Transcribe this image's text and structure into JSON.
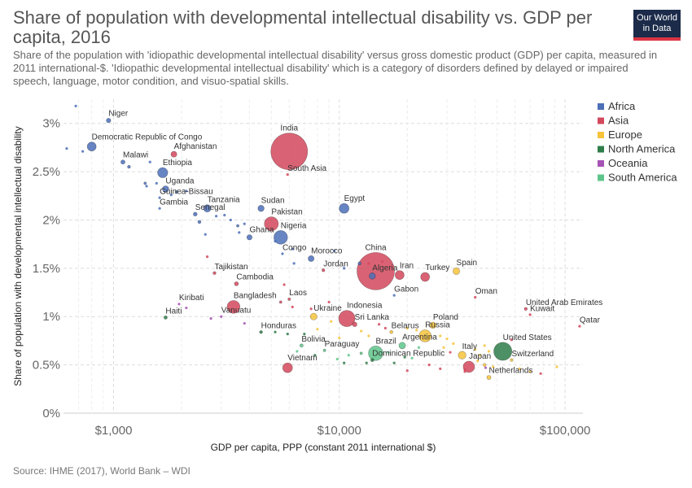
{
  "header": {
    "title": "Share of population with developmental intellectual disability vs. GDP per capita, 2016",
    "subtitle": "Share of the population with 'idiopathic developmental intellectual disability' versus gross domestic product (GDP) per capita, measured in 2011 international-$. 'Idiopathic developmental intellectual disability' which is a category of disorders defined by delayed or impaired speech, language, motor condition, and visuo-spatial skills.",
    "logo_line1": "Our World",
    "logo_line2": "in Data"
  },
  "footer": {
    "source": "Source: IHME (2017), World Bank – WDI"
  },
  "colors": {
    "Africa": "#4c6fb8",
    "Asia": "#d2485c",
    "Europe": "#f6c33b",
    "North America": "#2f7d4a",
    "Oceania": "#a553b4",
    "South America": "#5ec58a"
  },
  "chart_data": {
    "type": "scatter",
    "title": "Share of population with developmental intellectual disability vs. GDP per capita, 2016",
    "xlabel": "GDP per capita, PPP (constant 2011 international $)",
    "ylabel": "Share of population with developmental intellectual disability",
    "x_scale": "log",
    "xlim": [
      600,
      120000
    ],
    "ylim": [
      0,
      3.25
    ],
    "x_ticks": [
      1000,
      10000,
      100000
    ],
    "x_tick_labels": [
      "$1,000",
      "$10,000",
      "$100,000"
    ],
    "y_ticks": [
      0,
      0.5,
      1,
      1.5,
      2,
      2.5,
      3
    ],
    "y_tick_labels": [
      "0%",
      "0.5%",
      "1%",
      "1.5%",
      "2%",
      "2.5%",
      "3%"
    ],
    "grid": true,
    "legend_position": "right",
    "legend": [
      "Africa",
      "Asia",
      "Europe",
      "North America",
      "Oceania",
      "South America"
    ],
    "points": [
      {
        "label": "Niger",
        "x": 950,
        "y": 3.03,
        "pop": 20,
        "region": "Africa"
      },
      {
        "label": "Democratic Republic of Congo",
        "x": 800,
        "y": 2.76,
        "pop": 79,
        "region": "Africa"
      },
      {
        "label": "Malawi",
        "x": 1100,
        "y": 2.6,
        "pop": 18,
        "region": "Africa"
      },
      {
        "label": "Afghanistan",
        "x": 1850,
        "y": 2.68,
        "pop": 35,
        "region": "Asia"
      },
      {
        "label": "India",
        "x": 6000,
        "y": 2.71,
        "pop": 1324,
        "region": "Asia"
      },
      {
        "label": "South Asia",
        "x": 5900,
        "y": 2.47,
        "pop": 1,
        "region": "Asia"
      },
      {
        "label": "Ethiopia",
        "x": 1650,
        "y": 2.49,
        "pop": 102,
        "region": "Africa"
      },
      {
        "label": "Uganda",
        "x": 1700,
        "y": 2.32,
        "pop": 41,
        "region": "Africa"
      },
      {
        "label": "Guinea-Bissau",
        "x": 1600,
        "y": 2.23,
        "pop": 2,
        "region": "Africa"
      },
      {
        "label": "Gambia",
        "x": 1600,
        "y": 2.12,
        "pop": 2,
        "region": "Africa"
      },
      {
        "label": "Tanzania",
        "x": 2600,
        "y": 2.12,
        "pop": 55,
        "region": "Africa"
      },
      {
        "label": "Senegal",
        "x": 2300,
        "y": 2.06,
        "pop": 15,
        "region": "Africa"
      },
      {
        "label": "Sudan",
        "x": 4500,
        "y": 2.12,
        "pop": 39,
        "region": "Africa"
      },
      {
        "label": "Egypt",
        "x": 10500,
        "y": 2.12,
        "pop": 95,
        "region": "Africa"
      },
      {
        "label": "Pakistan",
        "x": 5000,
        "y": 1.96,
        "pop": 193,
        "region": "Asia"
      },
      {
        "label": "Nigeria",
        "x": 5500,
        "y": 1.82,
        "pop": 185,
        "region": "Africa"
      },
      {
        "label": "Ghana",
        "x": 4000,
        "y": 1.82,
        "pop": 28,
        "region": "Africa"
      },
      {
        "label": "Congo",
        "x": 5600,
        "y": 1.65,
        "pop": 5,
        "region": "Africa"
      },
      {
        "label": "Morocco",
        "x": 7500,
        "y": 1.6,
        "pop": 35,
        "region": "Africa"
      },
      {
        "label": "Jordan",
        "x": 8500,
        "y": 1.48,
        "pop": 9,
        "region": "Asia"
      },
      {
        "label": "China",
        "x": 14500,
        "y": 1.47,
        "pop": 1379,
        "region": "Asia"
      },
      {
        "label": "Algeria",
        "x": 14000,
        "y": 1.42,
        "pop": 40,
        "region": "Africa"
      },
      {
        "label": "Iran",
        "x": 18500,
        "y": 1.43,
        "pop": 80,
        "region": "Asia"
      },
      {
        "label": "Turkey",
        "x": 24000,
        "y": 1.41,
        "pop": 79,
        "region": "Asia"
      },
      {
        "label": "Spain",
        "x": 33000,
        "y": 1.47,
        "pop": 46,
        "region": "Europe"
      },
      {
        "label": "Tajikistan",
        "x": 2800,
        "y": 1.45,
        "pop": 9,
        "region": "Asia"
      },
      {
        "label": "Cambodia",
        "x": 3500,
        "y": 1.34,
        "pop": 16,
        "region": "Asia"
      },
      {
        "label": "Gabon",
        "x": 17500,
        "y": 1.22,
        "pop": 2,
        "region": "Africa"
      },
      {
        "label": "Oman",
        "x": 40000,
        "y": 1.2,
        "pop": 4,
        "region": "Asia"
      },
      {
        "label": "United Arab Emirates",
        "x": 67000,
        "y": 1.08,
        "pop": 9,
        "region": "Asia"
      },
      {
        "label": "Kuwait",
        "x": 70000,
        "y": 1.02,
        "pop": 4,
        "region": "Asia"
      },
      {
        "label": "Qatar",
        "x": 116000,
        "y": 0.9,
        "pop": 3,
        "region": "Asia"
      },
      {
        "label": "Kiribati",
        "x": 1950,
        "y": 1.13,
        "pop": 1,
        "region": "Oceania"
      },
      {
        "label": "Laos",
        "x": 6000,
        "y": 1.18,
        "pop": 7,
        "region": "Asia"
      },
      {
        "label": "Bangladesh",
        "x": 3400,
        "y": 1.1,
        "pop": 163,
        "region": "Asia"
      },
      {
        "label": "Vanuatu",
        "x": 3000,
        "y": 1.0,
        "pop": 1,
        "region": "Oceania"
      },
      {
        "label": "Haiti",
        "x": 1700,
        "y": 0.99,
        "pop": 11,
        "region": "North America"
      },
      {
        "label": "Indonesia",
        "x": 10800,
        "y": 0.98,
        "pop": 261,
        "region": "Asia"
      },
      {
        "label": "Ukraine",
        "x": 7700,
        "y": 1.0,
        "pop": 45,
        "region": "Europe"
      },
      {
        "label": "Sri Lanka",
        "x": 11700,
        "y": 0.92,
        "pop": 21,
        "region": "Asia"
      },
      {
        "label": "Belarus",
        "x": 17000,
        "y": 0.84,
        "pop": 10,
        "region": "Europe"
      },
      {
        "label": "Poland",
        "x": 26000,
        "y": 0.91,
        "pop": 38,
        "region": "Europe"
      },
      {
        "label": "Russia",
        "x": 24000,
        "y": 0.8,
        "pop": 144,
        "region": "Europe"
      },
      {
        "label": "Honduras",
        "x": 4500,
        "y": 0.84,
        "pop": 9,
        "region": "North America"
      },
      {
        "label": "Bolivia",
        "x": 6800,
        "y": 0.7,
        "pop": 11,
        "region": "South America"
      },
      {
        "label": "Paraguay",
        "x": 8600,
        "y": 0.65,
        "pop": 7,
        "region": "South America"
      },
      {
        "label": "Brazil",
        "x": 14500,
        "y": 0.62,
        "pop": 208,
        "region": "South America"
      },
      {
        "label": "Argentina",
        "x": 19000,
        "y": 0.7,
        "pop": 44,
        "region": "South America"
      },
      {
        "label": "Dominican Republic",
        "x": 14000,
        "y": 0.55,
        "pop": 11,
        "region": "North America"
      },
      {
        "label": "Italy",
        "x": 35000,
        "y": 0.6,
        "pop": 61,
        "region": "Europe"
      },
      {
        "label": "Japan",
        "x": 37500,
        "y": 0.48,
        "pop": 127,
        "region": "Asia"
      },
      {
        "label": "United States",
        "x": 53000,
        "y": 0.64,
        "pop": 323,
        "region": "North America"
      },
      {
        "label": "Switzerland",
        "x": 58000,
        "y": 0.55,
        "pop": 8,
        "region": "Europe"
      },
      {
        "label": "Netherlands",
        "x": 46000,
        "y": 0.37,
        "pop": 17,
        "region": "Europe"
      },
      {
        "label": "Vietnam",
        "x": 5900,
        "y": 0.47,
        "pop": 95,
        "region": "Asia"
      },
      {
        "label": "",
        "x": 680,
        "y": 3.18,
        "pop": 3,
        "region": "Africa"
      },
      {
        "label": "",
        "x": 620,
        "y": 2.74,
        "pop": 2,
        "region": "Africa"
      },
      {
        "label": "",
        "x": 730,
        "y": 2.71,
        "pop": 4,
        "region": "Africa"
      },
      {
        "label": "",
        "x": 1170,
        "y": 2.55,
        "pop": 9,
        "region": "Africa"
      },
      {
        "label": "",
        "x": 1450,
        "y": 2.6,
        "pop": 5,
        "region": "Africa"
      },
      {
        "label": "",
        "x": 1380,
        "y": 2.38,
        "pop": 6,
        "region": "Africa"
      },
      {
        "label": "",
        "x": 1400,
        "y": 2.35,
        "pop": 4,
        "region": "Africa"
      },
      {
        "label": "",
        "x": 1550,
        "y": 2.38,
        "pop": 4,
        "region": "Africa"
      },
      {
        "label": "",
        "x": 1900,
        "y": 2.29,
        "pop": 8,
        "region": "Africa"
      },
      {
        "label": "",
        "x": 2100,
        "y": 2.3,
        "pop": 3,
        "region": "Africa"
      },
      {
        "label": "",
        "x": 1800,
        "y": 2.26,
        "pop": 5,
        "region": "Africa"
      },
      {
        "label": "",
        "x": 2400,
        "y": 1.98,
        "pop": 10,
        "region": "Africa"
      },
      {
        "label": "",
        "x": 2850,
        "y": 2.04,
        "pop": 5,
        "region": "Africa"
      },
      {
        "label": "",
        "x": 3100,
        "y": 2.05,
        "pop": 3,
        "region": "Africa"
      },
      {
        "label": "",
        "x": 3300,
        "y": 2.0,
        "pop": 4,
        "region": "Africa"
      },
      {
        "label": "",
        "x": 3550,
        "y": 1.94,
        "pop": 6,
        "region": "Africa"
      },
      {
        "label": "",
        "x": 3800,
        "y": 1.96,
        "pop": 5,
        "region": "Africa"
      },
      {
        "label": "",
        "x": 2550,
        "y": 1.85,
        "pop": 1,
        "region": "Africa"
      },
      {
        "label": "",
        "x": 3600,
        "y": 1.87,
        "pop": 2,
        "region": "Africa"
      },
      {
        "label": "",
        "x": 5200,
        "y": 1.78,
        "pop": 2,
        "region": "Africa"
      },
      {
        "label": "",
        "x": 6200,
        "y": 1.7,
        "pop": 2,
        "region": "Africa"
      },
      {
        "label": "",
        "x": 6300,
        "y": 1.55,
        "pop": 2,
        "region": "Africa"
      },
      {
        "label": "",
        "x": 9500,
        "y": 1.68,
        "pop": 1,
        "region": "Africa"
      },
      {
        "label": "",
        "x": 12300,
        "y": 1.55,
        "pop": 10,
        "region": "Africa"
      },
      {
        "label": "",
        "x": 10500,
        "y": 1.5,
        "pop": 2,
        "region": "Africa"
      },
      {
        "label": "",
        "x": 13500,
        "y": 1.55,
        "pop": 3,
        "region": "Asia"
      },
      {
        "label": "",
        "x": 15500,
        "y": 1.57,
        "pop": 3,
        "region": "Asia"
      },
      {
        "label": "",
        "x": 2600,
        "y": 1.62,
        "pop": 3,
        "region": "Asia"
      },
      {
        "label": "",
        "x": 5700,
        "y": 1.33,
        "pop": 4,
        "region": "Asia"
      },
      {
        "label": "",
        "x": 5500,
        "y": 1.15,
        "pop": 6,
        "region": "Asia"
      },
      {
        "label": "",
        "x": 6200,
        "y": 1.1,
        "pop": 4,
        "region": "Asia"
      },
      {
        "label": "",
        "x": 7500,
        "y": 1.08,
        "pop": 4,
        "region": "Asia"
      },
      {
        "label": "",
        "x": 9000,
        "y": 1.15,
        "pop": 3,
        "region": "Asia"
      },
      {
        "label": "",
        "x": 2100,
        "y": 1.09,
        "pop": 1,
        "region": "Oceania"
      },
      {
        "label": "",
        "x": 2700,
        "y": 0.98,
        "pop": 2,
        "region": "Oceania"
      },
      {
        "label": "",
        "x": 3800,
        "y": 0.93,
        "pop": 1,
        "region": "Oceania"
      },
      {
        "label": "",
        "x": 5200,
        "y": 0.84,
        "pop": 2,
        "region": "North America"
      },
      {
        "label": "",
        "x": 5900,
        "y": 0.82,
        "pop": 4,
        "region": "North America"
      },
      {
        "label": "",
        "x": 7000,
        "y": 0.82,
        "pop": 3,
        "region": "North America"
      },
      {
        "label": "",
        "x": 8000,
        "y": 0.87,
        "pop": 3,
        "region": "Europe"
      },
      {
        "label": "",
        "x": 9200,
        "y": 0.95,
        "pop": 4,
        "region": "Europe"
      },
      {
        "label": "",
        "x": 10000,
        "y": 0.78,
        "pop": 3,
        "region": "Europe"
      },
      {
        "label": "",
        "x": 12500,
        "y": 0.85,
        "pop": 3,
        "region": "Europe"
      },
      {
        "label": "",
        "x": 13500,
        "y": 0.8,
        "pop": 4,
        "region": "Europe"
      },
      {
        "label": "",
        "x": 15000,
        "y": 0.92,
        "pop": 3,
        "region": "Asia"
      },
      {
        "label": "",
        "x": 16000,
        "y": 0.88,
        "pop": 4,
        "region": "Asia"
      },
      {
        "label": "",
        "x": 20000,
        "y": 0.88,
        "pop": 3,
        "region": "Europe"
      },
      {
        "label": "",
        "x": 22000,
        "y": 0.86,
        "pop": 4,
        "region": "Europe"
      },
      {
        "label": "",
        "x": 25000,
        "y": 0.77,
        "pop": 4,
        "region": "Europe"
      },
      {
        "label": "",
        "x": 28000,
        "y": 0.8,
        "pop": 4,
        "region": "Europe"
      },
      {
        "label": "",
        "x": 30000,
        "y": 0.77,
        "pop": 3,
        "region": "Europe"
      },
      {
        "label": "",
        "x": 32000,
        "y": 0.72,
        "pop": 3,
        "region": "Europe"
      },
      {
        "label": "",
        "x": 29000,
        "y": 0.68,
        "pop": 5,
        "region": "Europe"
      },
      {
        "label": "",
        "x": 31000,
        "y": 0.63,
        "pop": 3,
        "region": "Asia"
      },
      {
        "label": "",
        "x": 40000,
        "y": 0.66,
        "pop": 4,
        "region": "Europe"
      },
      {
        "label": "",
        "x": 42000,
        "y": 0.6,
        "pop": 5,
        "region": "Europe"
      },
      {
        "label": "",
        "x": 44000,
        "y": 0.7,
        "pop": 3,
        "region": "Europe"
      },
      {
        "label": "",
        "x": 46000,
        "y": 0.64,
        "pop": 3,
        "region": "Europe"
      },
      {
        "label": "",
        "x": 44000,
        "y": 0.5,
        "pop": 9,
        "region": "Europe"
      },
      {
        "label": "",
        "x": 48000,
        "y": 0.48,
        "pop": 4,
        "region": "Europe"
      },
      {
        "label": "",
        "x": 41000,
        "y": 0.54,
        "pop": 4,
        "region": "Europe"
      },
      {
        "label": "",
        "x": 36000,
        "y": 0.45,
        "pop": 5,
        "region": "Asia"
      },
      {
        "label": "",
        "x": 58000,
        "y": 0.76,
        "pop": 5,
        "region": "Asia"
      },
      {
        "label": "",
        "x": 78000,
        "y": 0.41,
        "pop": 2,
        "region": "Asia"
      },
      {
        "label": "",
        "x": 63000,
        "y": 0.46,
        "pop": 2,
        "region": "Europe"
      },
      {
        "label": "",
        "x": 70000,
        "y": 0.43,
        "pop": 2,
        "region": "Europe"
      },
      {
        "label": "",
        "x": 92000,
        "y": 0.48,
        "pop": 1,
        "region": "Europe"
      },
      {
        "label": "",
        "x": 44500,
        "y": 0.47,
        "pop": 3,
        "region": "Oceania"
      },
      {
        "label": "",
        "x": 36000,
        "y": 0.43,
        "pop": 4,
        "region": "Asia"
      },
      {
        "label": "",
        "x": 19500,
        "y": 0.58,
        "pop": 3,
        "region": "North America"
      },
      {
        "label": "",
        "x": 21000,
        "y": 0.57,
        "pop": 3,
        "region": "South America"
      },
      {
        "label": "",
        "x": 22500,
        "y": 0.68,
        "pop": 3,
        "region": "South America"
      },
      {
        "label": "",
        "x": 16500,
        "y": 0.63,
        "pop": 5,
        "region": "South America"
      },
      {
        "label": "",
        "x": 12500,
        "y": 0.62,
        "pop": 6,
        "region": "South America"
      },
      {
        "label": "",
        "x": 11000,
        "y": 0.6,
        "pop": 4,
        "region": "South America"
      },
      {
        "label": "",
        "x": 9800,
        "y": 0.56,
        "pop": 3,
        "region": "South America"
      },
      {
        "label": "",
        "x": 7800,
        "y": 0.6,
        "pop": 3,
        "region": "North America"
      },
      {
        "label": "",
        "x": 6500,
        "y": 0.64,
        "pop": 2,
        "region": "South America"
      },
      {
        "label": "",
        "x": 10500,
        "y": 0.52,
        "pop": 3,
        "region": "North America"
      },
      {
        "label": "",
        "x": 13200,
        "y": 0.52,
        "pop": 3,
        "region": "North America"
      },
      {
        "label": "",
        "x": 17500,
        "y": 0.52,
        "pop": 3,
        "region": "North America"
      },
      {
        "label": "",
        "x": 25000,
        "y": 0.5,
        "pop": 2,
        "region": "Asia"
      },
      {
        "label": "",
        "x": 28000,
        "y": 0.46,
        "pop": 2,
        "region": "Asia"
      },
      {
        "label": "",
        "x": 20000,
        "y": 0.44,
        "pop": 1,
        "region": "Asia"
      }
    ]
  }
}
